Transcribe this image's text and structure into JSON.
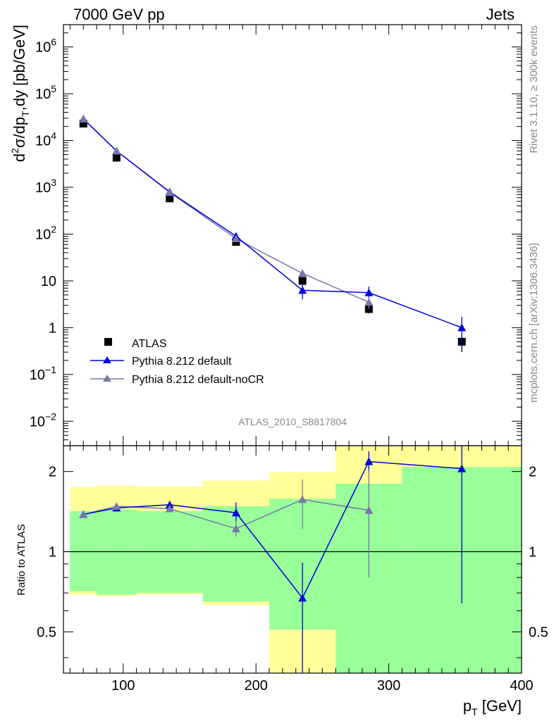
{
  "header": {
    "left": "7000 GeV pp",
    "right": "Jets"
  },
  "side_labels": {
    "rivet": "Rivet 3.1.10, ≥ 300k events",
    "mcplots": "mcplots.cern.ch [arXiv:1306.3436]"
  },
  "analysis_id": "ATLAS_2010_S8817804",
  "chart_data": [
    {
      "type": "scatter",
      "name": "main-panel",
      "ylabel_parts": [
        "d",
        "2",
        "σ/dp",
        "T",
        ",dy [pb/GeV]"
      ],
      "yscale": "log",
      "ylim": [
        0.003,
        3000000
      ],
      "xlim": [
        55,
        400
      ],
      "yticks": [
        {
          "value": 0.01,
          "base": "10",
          "exp": "−2"
        },
        {
          "value": 0.1,
          "base": "10",
          "exp": "−1"
        },
        {
          "value": 1,
          "base": "1",
          "exp": ""
        },
        {
          "value": 10,
          "base": "10",
          "exp": ""
        },
        {
          "value": 100,
          "base": "10",
          "exp": "2"
        },
        {
          "value": 1000,
          "base": "10",
          "exp": "3"
        },
        {
          "value": 10000,
          "base": "10",
          "exp": "4"
        },
        {
          "value": 100000,
          "base": "10",
          "exp": "5"
        },
        {
          "value": 1000000,
          "base": "10",
          "exp": "6"
        }
      ],
      "series": [
        {
          "name": "ATLAS",
          "color": "#000000",
          "marker": "square",
          "x": [
            70,
            95,
            135,
            185,
            235,
            285,
            355
          ],
          "y": [
            23000,
            4300,
            580,
            68,
            10,
            2.5,
            0.5
          ],
          "yerr_low": [
            0,
            0,
            0,
            0,
            0,
            0.5,
            0.2
          ],
          "yerr_high": [
            0,
            0,
            0,
            0,
            0,
            0.5,
            0.2
          ]
        },
        {
          "name": "Pythia 8.212 default",
          "color": "#0000dd",
          "marker": "triangle",
          "x": [
            70,
            95,
            135,
            185,
            235,
            285,
            355
          ],
          "y": [
            29000,
            6000,
            800,
            90,
            6.3,
            5.6,
            1.0
          ],
          "yerr_low": [
            0,
            0,
            0,
            10,
            2.3,
            1.6,
            0.6
          ],
          "yerr_high": [
            0,
            0,
            0,
            10,
            2.3,
            2.0,
            0.7
          ]
        },
        {
          "name": "Pythia 8.212 default-noCR",
          "color": "#7777aa",
          "marker": "triangle",
          "x": [
            70,
            95,
            135,
            185,
            235,
            285
          ],
          "y": [
            29000,
            6000,
            780,
            80,
            14.5,
            3.5
          ],
          "yerr_low": [
            0,
            0,
            0,
            8,
            2.5,
            1.0
          ],
          "yerr_high": [
            0,
            0,
            0,
            8,
            3.0,
            1.0
          ]
        }
      ]
    },
    {
      "type": "scatter",
      "name": "ratio-panel",
      "ylabel": "Ratio to ATLAS",
      "xlabel": "p",
      "xlabel_sub": "T",
      "xlabel_unit": " [GeV]",
      "yscale": "log",
      "ylim": [
        0.35,
        2.5
      ],
      "xlim": [
        55,
        400
      ],
      "xticks": [
        {
          "value": 100,
          "label": "100"
        },
        {
          "value": 200,
          "label": "200"
        },
        {
          "value": 300,
          "label": "300"
        },
        {
          "value": 400,
          "label": "400"
        }
      ],
      "yticks": [
        {
          "value": 0.5,
          "label": "0.5"
        },
        {
          "value": 1,
          "label": "1"
        },
        {
          "value": 2,
          "label": "2"
        }
      ],
      "bands": {
        "yellow_color": "#ffff99",
        "green_color": "#99ff99",
        "bins": [
          {
            "xlo": 60,
            "xhi": 80,
            "y_lo": 0.69,
            "y_hi": 1.75,
            "g_lo": 0.71,
            "g_hi": 1.42
          },
          {
            "xlo": 80,
            "xhi": 110,
            "y_lo": 0.68,
            "y_hi": 1.77,
            "g_lo": 0.69,
            "g_hi": 1.44
          },
          {
            "xlo": 110,
            "xhi": 160,
            "y_lo": 0.69,
            "y_hi": 1.76,
            "g_lo": 0.7,
            "g_hi": 1.42
          },
          {
            "xlo": 160,
            "xhi": 210,
            "y_lo": 0.63,
            "y_hi": 1.85,
            "g_lo": 0.65,
            "g_hi": 1.48
          },
          {
            "xlo": 210,
            "xhi": 260,
            "y_lo": 0.35,
            "y_hi": 1.99,
            "g_lo": 0.51,
            "g_hi": 1.58
          },
          {
            "xlo": 260,
            "xhi": 310,
            "y_lo": 0.35,
            "y_hi": 2.5,
            "g_lo": 0.35,
            "g_hi": 1.8
          },
          {
            "xlo": 310,
            "xhi": 400,
            "y_lo": 0.35,
            "y_hi": 2.5,
            "g_lo": 0.35,
            "g_hi": 2.08
          }
        ]
      },
      "series": [
        {
          "name": "Pythia 8.212 default",
          "color": "#0000dd",
          "x": [
            70,
            95,
            135,
            185,
            235,
            285,
            355
          ],
          "y": [
            1.38,
            1.46,
            1.5,
            1.4,
            0.67,
            2.18,
            2.05
          ],
          "yerr_low": [
            0,
            0,
            0.04,
            0.1,
            0.32,
            0.2,
            1.41
          ],
          "yerr_high": [
            0,
            0,
            0.04,
            0.13,
            0.24,
            0.2,
            0.5
          ]
        },
        {
          "name": "Pythia 8.212 default-noCR",
          "color": "#7777aa",
          "x": [
            70,
            95,
            135,
            185,
            235,
            285
          ],
          "y": [
            1.38,
            1.48,
            1.45,
            1.22,
            1.57,
            1.43
          ],
          "yerr_low": [
            0,
            0,
            0,
            0.08,
            0.35,
            0.63
          ],
          "yerr_high": [
            0,
            0,
            0,
            0.08,
            0.3,
            0.6
          ]
        }
      ]
    }
  ]
}
